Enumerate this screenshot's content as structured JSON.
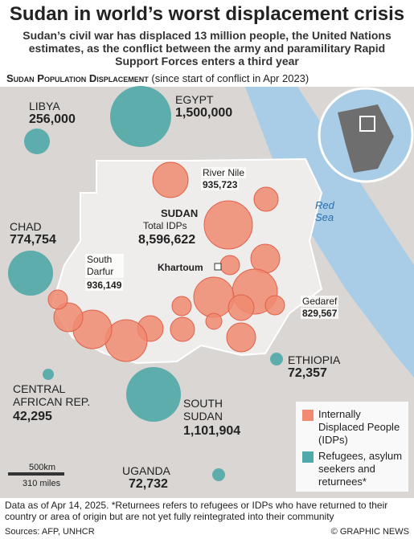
{
  "header": {
    "title": "Sudan in world’s worst displacement crisis",
    "subtitle": "Sudan’s civil war has displaced 13 million people, the United Nations estimates, as the conflict between the army and paramilitary Rapid Support Forces enters a third year"
  },
  "section": {
    "title": "Sudan Population Displacement",
    "note": "(since start of conflict in Apr 2023)"
  },
  "places": {
    "libya": {
      "name": "LIBYA",
      "value": "256,000"
    },
    "egypt": {
      "name": "EGYPT",
      "value": "1,500,000"
    },
    "river_nile": {
      "name": "River Nile",
      "value": "935,723"
    },
    "sudan": {
      "name": "SUDAN",
      "label": "Total IDPs",
      "value": "8,596,622"
    },
    "chad": {
      "name": "CHAD",
      "value": "774,754"
    },
    "south_darfur": {
      "name": "South Darfur",
      "value": "936,149"
    },
    "khartoum": {
      "name": "Khartoum"
    },
    "gedaref": {
      "name": "Gedaref",
      "value": "829,567"
    },
    "ethiopia": {
      "name": "ETHIOPIA",
      "value": "72,357"
    },
    "car": {
      "name": "CENTRAL AFRICAN REP.",
      "value": "42,295"
    },
    "south_sudan": {
      "name": "SOUTH SUDAN",
      "value": "1,101,904"
    },
    "uganda": {
      "name": "UGANDA",
      "value": "72,732"
    },
    "red_sea": {
      "name": "Red Sea"
    }
  },
  "legend": {
    "items": [
      "Internally Displaced People (IDPs)",
      "Refugees, asylum seekers and returnees*"
    ]
  },
  "scale": {
    "km": "500km",
    "miles": "310 miles"
  },
  "footer": {
    "note": "Data as of Apr 14, 2025. *Returnees refers to refugees or IDPs who have returned to their country or area of origin but are not yet fully reintegrated into their community",
    "sources": "Sources: AFP, UNHCR",
    "credit": "© GRAPHIC NEWS"
  }
}
